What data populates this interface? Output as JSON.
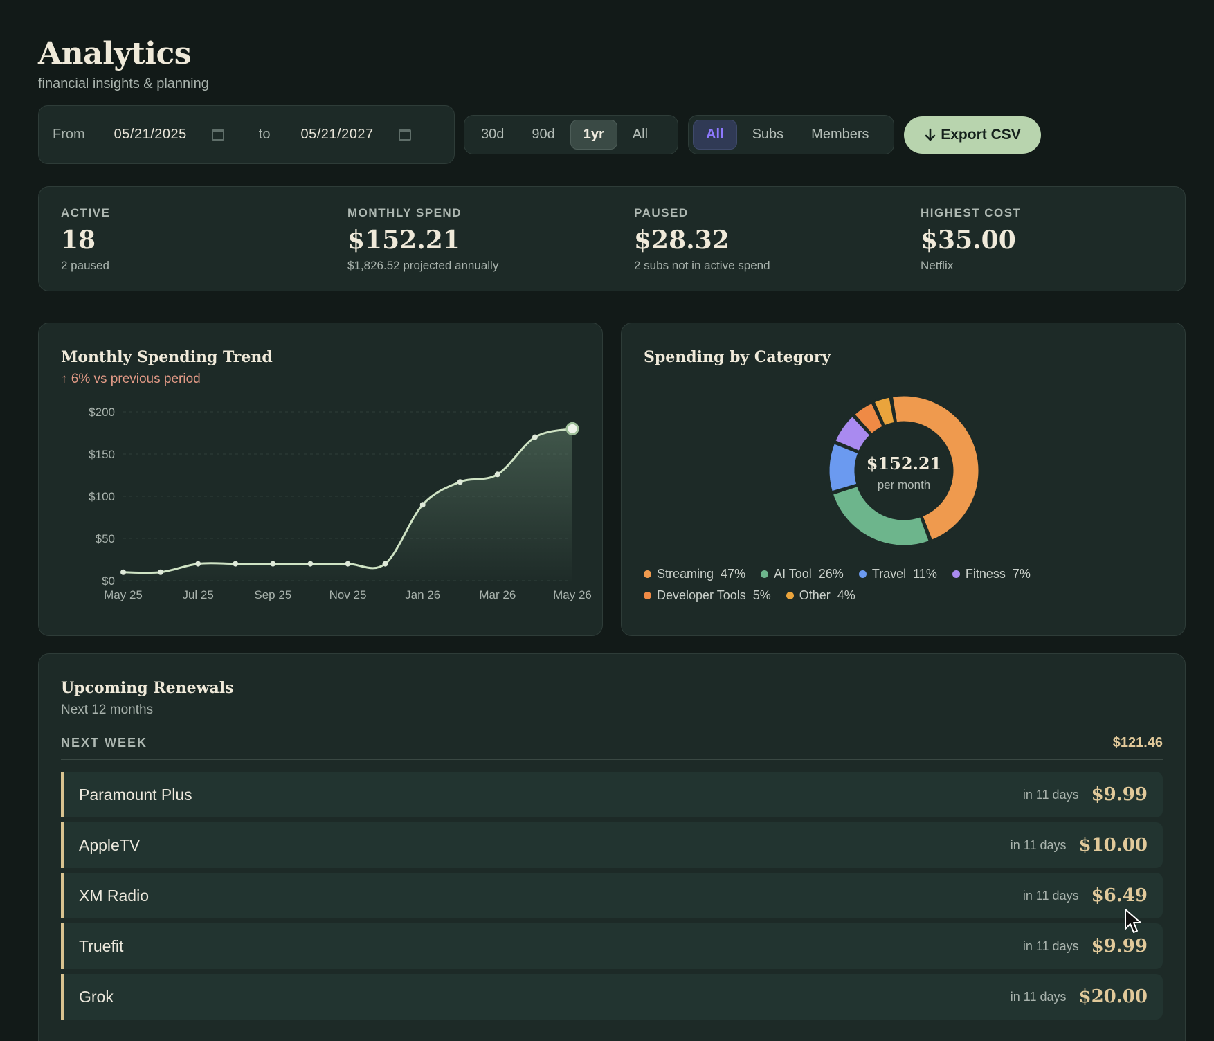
{
  "header": {
    "title": "Analytics",
    "subtitle": "financial insights & planning"
  },
  "toolbar": {
    "from_label": "From",
    "from_value": "05/21/2025",
    "to_label": "to",
    "to_value": "05/21/2027",
    "ranges": [
      "30d",
      "90d",
      "1yr",
      "All"
    ],
    "active_range": "1yr",
    "filters": [
      "All",
      "Subs",
      "Members"
    ],
    "active_filter": "All",
    "export_label": "Export CSV",
    "export_icon": "arrow-down-icon"
  },
  "stats": [
    {
      "label": "ACTIVE",
      "value": "18",
      "sub": "2 paused"
    },
    {
      "label": "MONTHLY SPEND",
      "value": "$152.21",
      "sub": "$1,826.52 projected annually"
    },
    {
      "label": "PAUSED",
      "value": "$28.32",
      "sub": "2 subs not in active spend"
    },
    {
      "label": "HIGHEST COST",
      "value": "$35.00",
      "sub": "Netflix"
    }
  ],
  "trend": {
    "title": "Monthly Spending Trend",
    "delta": "↑ 6% vs previous period",
    "delta_color": "#e29a86"
  },
  "category": {
    "title": "Spending by Category",
    "center_value": "$152.21",
    "center_label": "per month"
  },
  "chart_data": [
    {
      "type": "area",
      "title": "Monthly Spending Trend",
      "x": [
        "May 25",
        "Jun 25",
        "Jul 25",
        "Aug 25",
        "Sep 25",
        "Oct 25",
        "Nov 25",
        "Dec 25",
        "Jan 26",
        "Feb 26",
        "Mar 26",
        "Apr 26",
        "May 26"
      ],
      "values": [
        10,
        10,
        20,
        20,
        20,
        20,
        20,
        20,
        90,
        117,
        126,
        170,
        180
      ],
      "tick_labels": [
        "May 25",
        "Jul 25",
        "Sep 25",
        "Nov 25",
        "Jan 26",
        "Mar 26",
        "May 26"
      ],
      "y_ticks": [
        "$0",
        "$50",
        "$100",
        "$150",
        "$200"
      ],
      "ylim": [
        0,
        200
      ],
      "line_color": "#cfe3c4",
      "grid": true
    },
    {
      "type": "pie",
      "title": "Spending by Category",
      "slices": [
        {
          "name": "Streaming",
          "pct": "47%",
          "value": 47,
          "color": "#ef9a4e"
        },
        {
          "name": "AI Tool",
          "pct": "26%",
          "value": 26,
          "color": "#6db58c"
        },
        {
          "name": "Travel",
          "pct": "11%",
          "value": 11,
          "color": "#6b9af0"
        },
        {
          "name": "Fitness",
          "pct": "7%",
          "value": 7,
          "color": "#a98af0"
        },
        {
          "name": "Developer Tools",
          "pct": "5%",
          "value": 5,
          "color": "#ef8a45"
        },
        {
          "name": "Other",
          "pct": "4%",
          "value": 4,
          "color": "#eaa43c"
        }
      ]
    }
  ],
  "renewals": {
    "title": "Upcoming Renewals",
    "subtitle": "Next 12 months",
    "group_label": "NEXT WEEK",
    "group_total": "$121.46",
    "items": [
      {
        "name": "Paramount Plus",
        "when": "in 11 days",
        "amount": "$9.99"
      },
      {
        "name": "AppleTV",
        "when": "in 11 days",
        "amount": "$10.00"
      },
      {
        "name": "XM Radio",
        "when": "in 11 days",
        "amount": "$6.49"
      },
      {
        "name": "Truefit",
        "when": "in 11 days",
        "amount": "$9.99"
      },
      {
        "name": "Grok",
        "when": "in 11 days",
        "amount": "$20.00"
      }
    ]
  }
}
